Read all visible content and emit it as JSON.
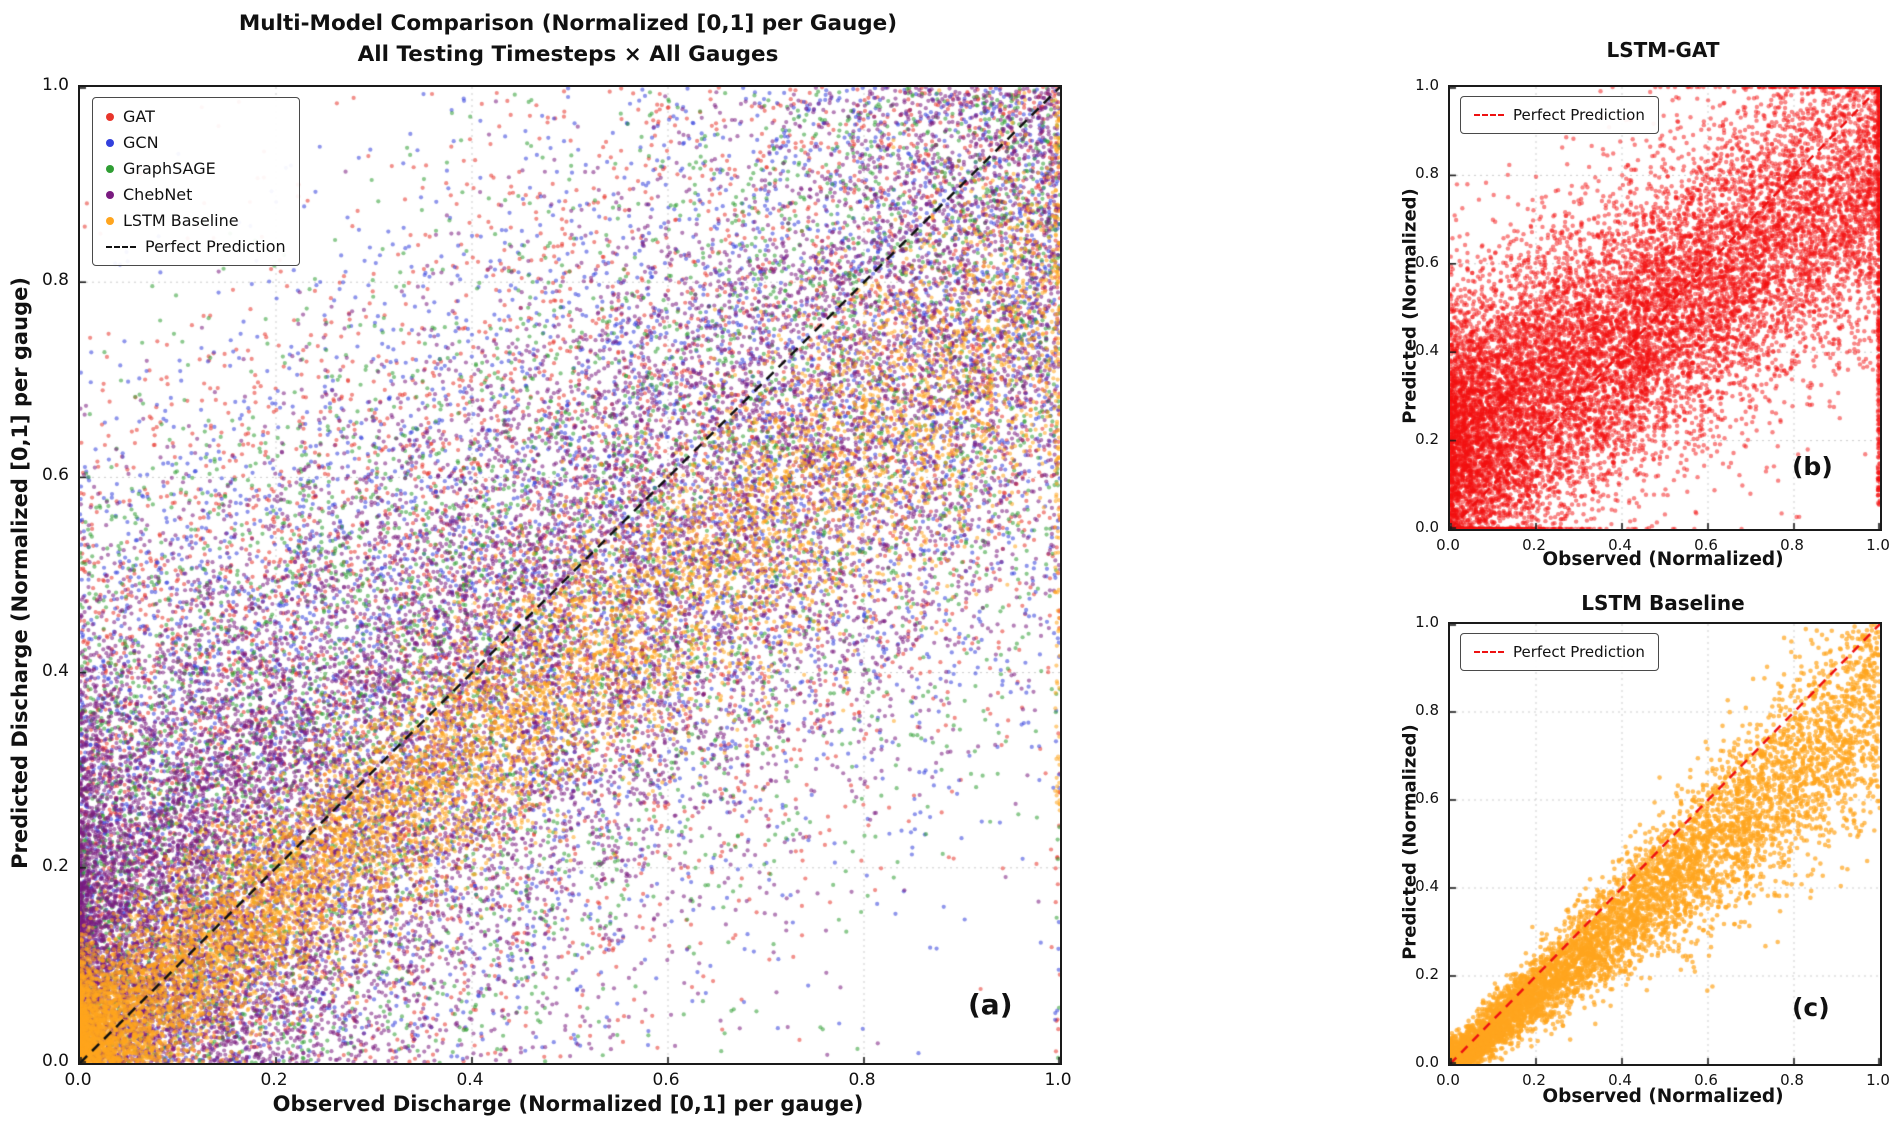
{
  "figure": {
    "background": "#ffffff"
  },
  "chart_data": [
    {
      "id": "a",
      "type": "scatter",
      "title": "Multi-Model Comparison (Normalized [0,1] per Gauge)",
      "subtitle": "All Testing Timesteps × All Gauges",
      "xlabel": "Observed Discharge (Normalized [0,1] per gauge)",
      "ylabel": "Predicted Discharge (Normalized [0,1] per gauge)",
      "panel_label": "(a)",
      "xlim": [
        0.0,
        1.0
      ],
      "ylim": [
        0.0,
        1.0
      ],
      "xticks": [
        "0.0",
        "0.2",
        "0.4",
        "0.6",
        "0.8",
        "1.0"
      ],
      "yticks": [
        "0.0",
        "0.2",
        "0.4",
        "0.6",
        "0.8",
        "1.0"
      ],
      "grid": true,
      "legend_position": "upper left",
      "point_alpha": 0.55,
      "point_radius": 2.1,
      "ref_line": {
        "label": "Perfect Prediction",
        "color": "#111111",
        "dash": [
          10,
          7
        ]
      },
      "legend": {
        "entries": [
          {
            "label": "GAT",
            "color": "#e8352b",
            "type": "dot"
          },
          {
            "label": "GCN",
            "color": "#3340dd",
            "type": "dot"
          },
          {
            "label": "GraphSAGE",
            "color": "#2f9e33",
            "type": "dot"
          },
          {
            "label": "ChebNet",
            "color": "#7a1b80",
            "type": "dot"
          },
          {
            "label": "LSTM Baseline",
            "color": "#ffa51e",
            "type": "dot"
          },
          {
            "label": "Perfect Prediction",
            "color": "#111111",
            "type": "dash"
          }
        ]
      },
      "series": [
        {
          "name": "GAT",
          "color": "#e8352b",
          "gen": {
            "n": 5500,
            "xpow": 1.15,
            "slope": 0.6,
            "intercept": 0.22,
            "noise": 0.23,
            "seed": 11,
            "edge_frac": 0.004
          }
        },
        {
          "name": "GCN",
          "color": "#3340dd",
          "gen": {
            "n": 5500,
            "xpow": 1.15,
            "slope": 0.62,
            "intercept": 0.2,
            "noise": 0.23,
            "seed": 22,
            "edge_frac": 0.004
          }
        },
        {
          "name": "GraphSAGE",
          "color": "#2f9e33",
          "gen": {
            "n": 5500,
            "xpow": 1.25,
            "slope": 0.65,
            "intercept": 0.16,
            "noise": 0.21,
            "seed": 33,
            "edge_frac": 0.004
          }
        },
        {
          "name": "ChebNet",
          "color": "#7a1b80",
          "gen": {
            "n": 15000,
            "xpow": 1.5,
            "slope": 0.75,
            "intercept": 0.08,
            "noise": 0.18,
            "seed": 44
          }
        },
        {
          "name": "LSTM Baseline",
          "color": "#ffa51e",
          "gen": {
            "n": 9000,
            "xpow": 1.9,
            "slope": 0.78,
            "intercept": 0.01,
            "noise": 0.045,
            "noise_prop": 0.05,
            "seed": 55,
            "edge_frac": 0.015,
            "edge_ymin": 0.25
          }
        }
      ]
    },
    {
      "id": "b",
      "type": "scatter",
      "title": "LSTM-GAT",
      "xlabel": "Observed (Normalized)",
      "ylabel": "Predicted (Normalized)",
      "panel_label": "(b)",
      "xlim": [
        0.0,
        1.0
      ],
      "ylim": [
        0.0,
        1.0
      ],
      "xticks": [
        "0.0",
        "0.2",
        "0.4",
        "0.6",
        "0.8",
        "1.0"
      ],
      "yticks": [
        "0.0",
        "0.2",
        "0.4",
        "0.6",
        "0.8",
        "1.0"
      ],
      "grid": true,
      "legend_position": "upper left",
      "point_alpha": 0.5,
      "point_radius": 2.2,
      "ref_line": {
        "label": "Perfect Prediction",
        "color": "#ee1111",
        "dash": [
          9,
          7
        ]
      },
      "legend": {
        "entries": [
          {
            "label": "Perfect Prediction",
            "color": "#ee1111",
            "type": "dash"
          }
        ]
      },
      "series": [
        {
          "name": "LSTM-GAT",
          "color": "#f40f0f",
          "gen": {
            "n": 13000,
            "xpow": 1.35,
            "slope": 0.62,
            "intercept": 0.18,
            "noise": 0.17,
            "seed": 7,
            "clip": "clamp",
            "edge_frac": 0.025,
            "edge_ymin": 0.05
          }
        }
      ]
    },
    {
      "id": "c",
      "type": "scatter",
      "title": "LSTM Baseline",
      "xlabel": "Observed (Normalized)",
      "ylabel": "Predicted (Normalized)",
      "panel_label": "(c)",
      "xlim": [
        0.0,
        1.0
      ],
      "ylim": [
        0.0,
        1.0
      ],
      "xticks": [
        "0.0",
        "0.2",
        "0.4",
        "0.6",
        "0.8",
        "1.0"
      ],
      "yticks": [
        "0.0",
        "0.2",
        "0.4",
        "0.6",
        "0.8",
        "1.0"
      ],
      "grid": true,
      "legend_position": "upper left",
      "point_alpha": 0.7,
      "point_radius": 2.3,
      "ref_line": {
        "label": "Perfect Prediction",
        "color": "#ee1111",
        "dash": [
          9,
          7
        ]
      },
      "legend": {
        "entries": [
          {
            "label": "Perfect Prediction",
            "color": "#ee1111",
            "type": "dash"
          }
        ]
      },
      "series": [
        {
          "name": "LSTM Baseline",
          "color": "#ffa51e",
          "gen": {
            "n": 6500,
            "xpow": 1.5,
            "slope": 0.82,
            "intercept": 0.0,
            "noise": 0.02,
            "noise_prop": 0.11,
            "seed": 5
          }
        }
      ]
    }
  ]
}
